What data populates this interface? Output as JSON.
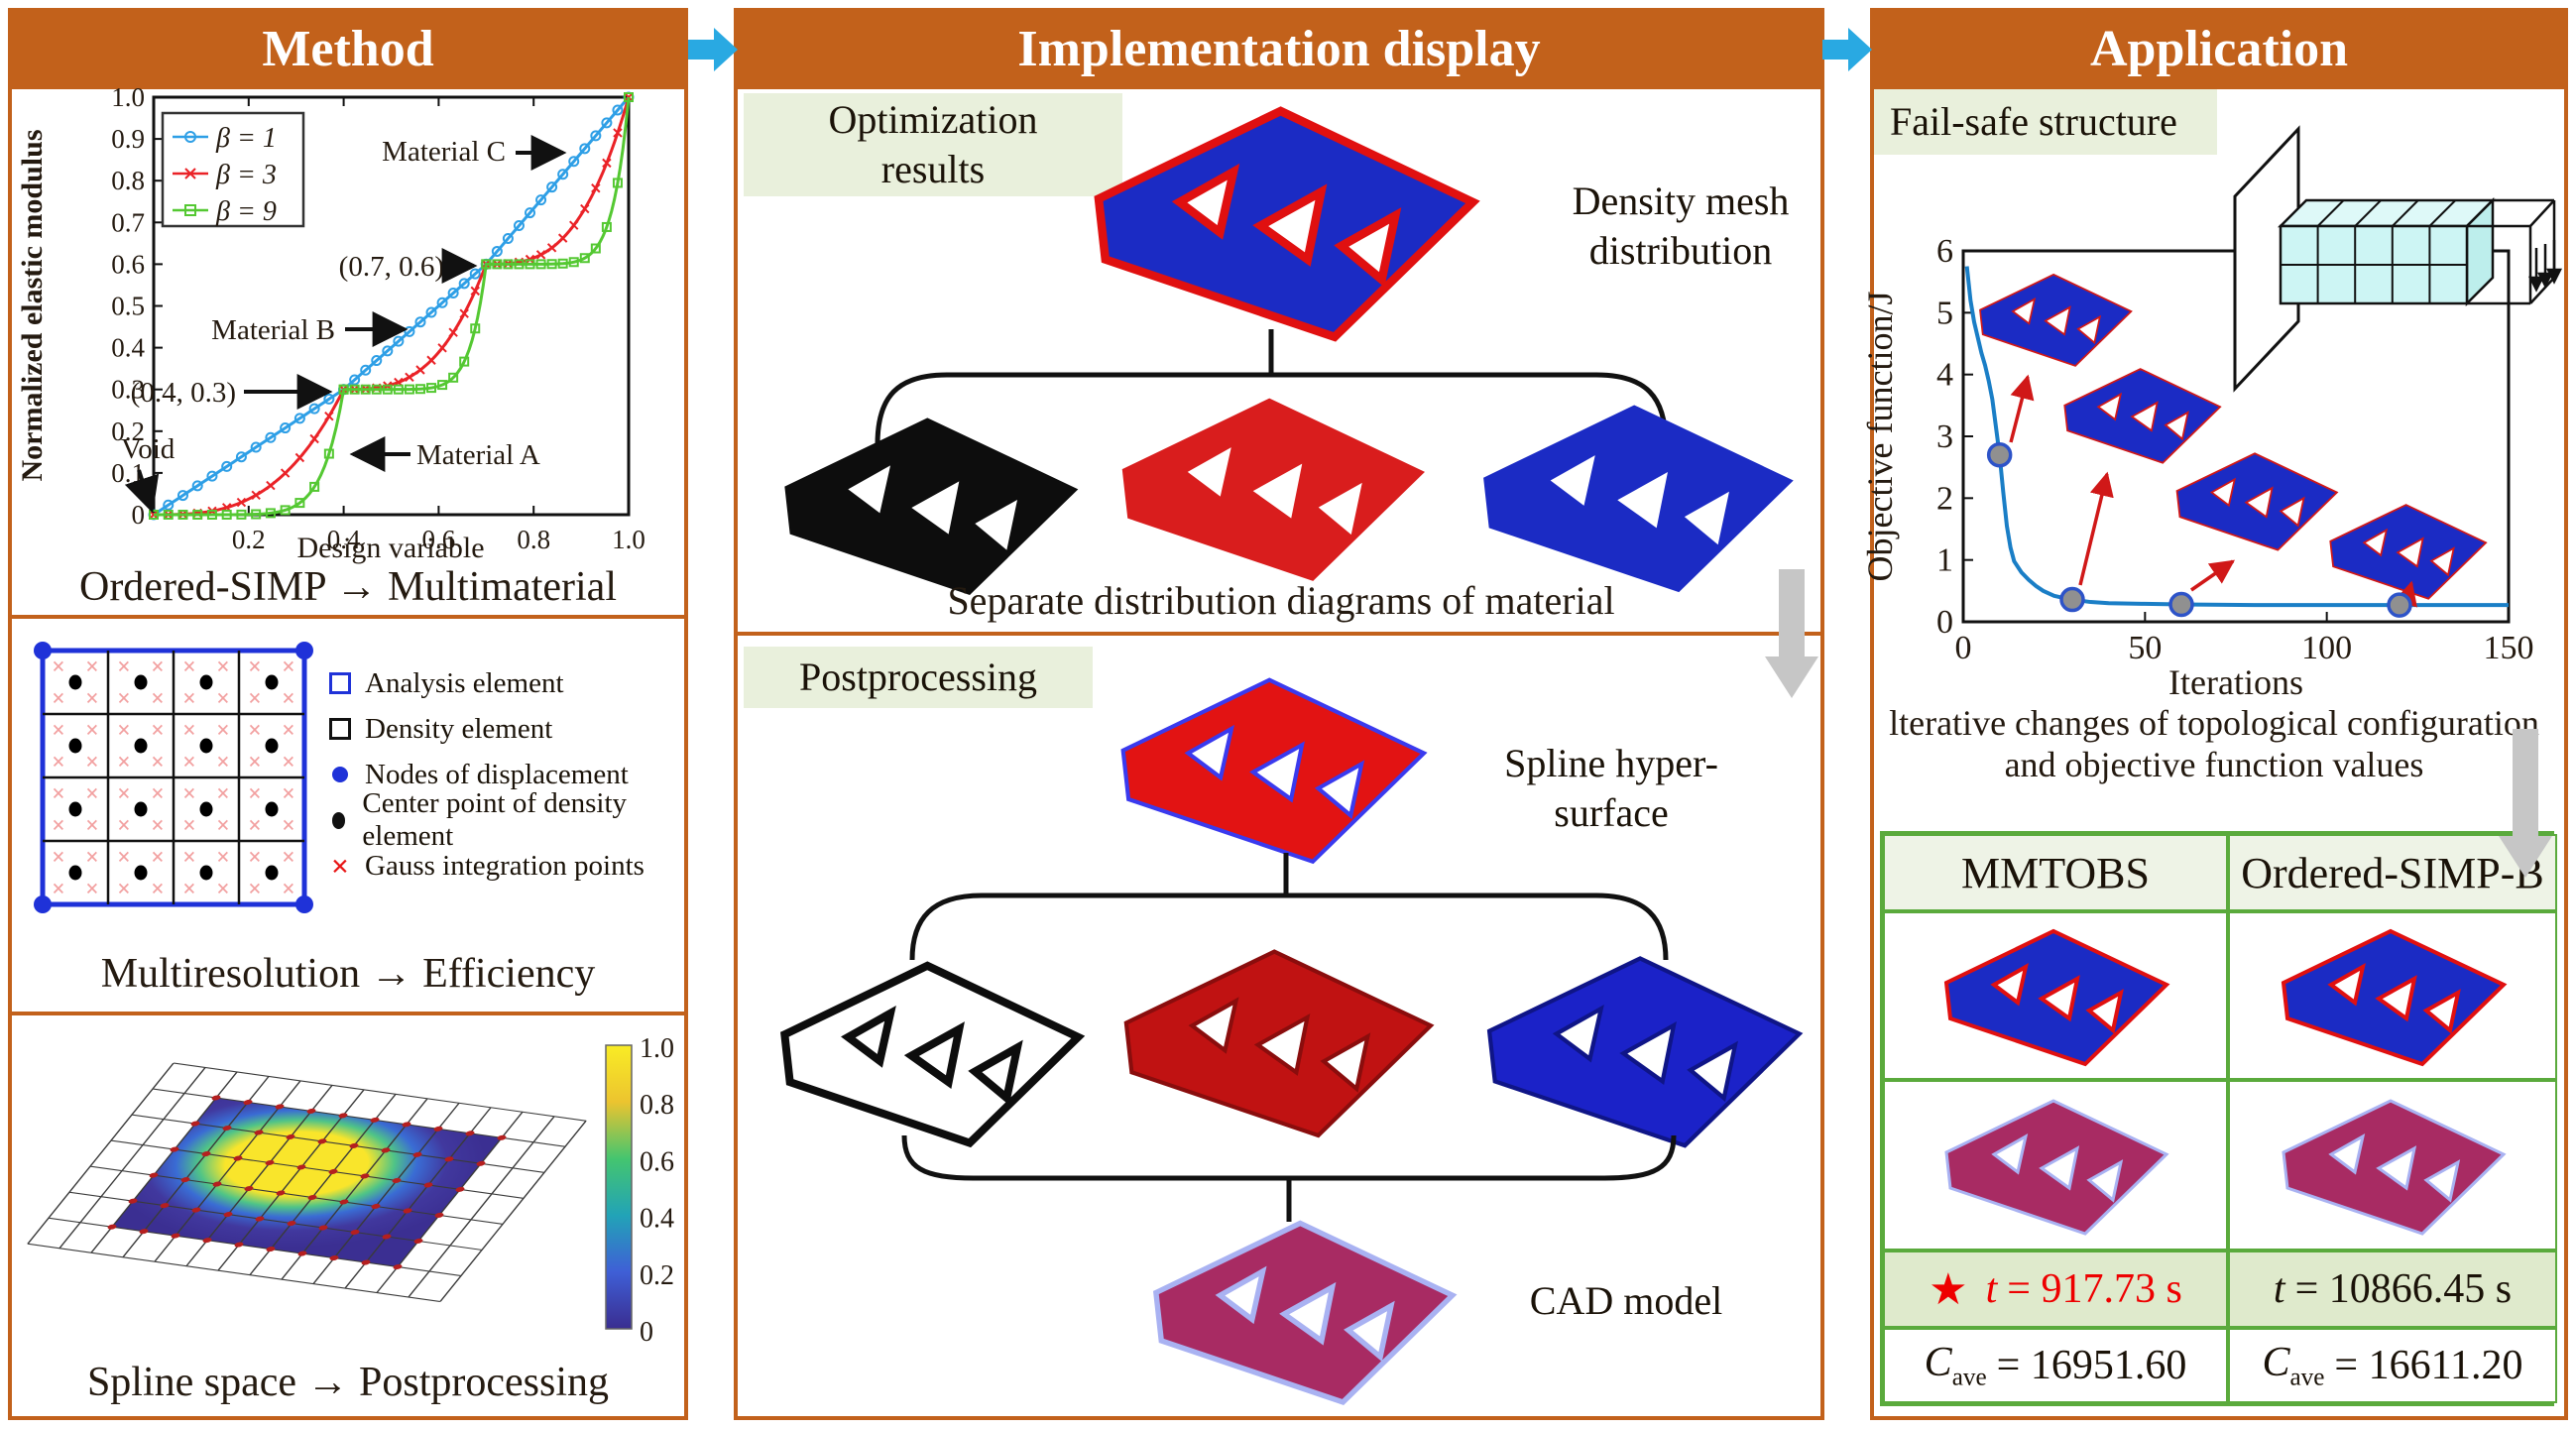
{
  "headers": {
    "method": "Method",
    "implementation": "Implementation display",
    "application": "Application"
  },
  "colors": {
    "panel_orange": "#c2611b",
    "flow_arrow_blue": "#29a9e2",
    "label_green_bg": "#e9f0dc",
    "table_border_green": "#5aaa3c",
    "highlight_red": "#ee0000",
    "gray_arrow": "#c6c6c6",
    "material_black": "#0d0d0d",
    "material_red": "#d91d1d",
    "material_blue": "#1b2bc4",
    "cad_magenta": "#a82b63"
  },
  "method": {
    "caption_simp": "Ordered-SIMP → Multimaterial",
    "caption_multires": "Multiresolution → Efficiency",
    "caption_spline": "Spline space → Postprocessing",
    "grid_legend": [
      {
        "label": "Analysis element"
      },
      {
        "label": "Density element"
      },
      {
        "label": "Nodes of displacement"
      },
      {
        "label": "Center point of density element"
      },
      {
        "label": "Gauss integration points"
      }
    ],
    "colorbar_ticks": [
      "1.0",
      "0.8",
      "0.6",
      "0.4",
      "0.2",
      "0"
    ]
  },
  "implementation": {
    "optimization_line1": "Optimization",
    "optimization_line2": "results",
    "density_line1": "Density mesh",
    "density_line2": "distribution",
    "separate_caption": "Separate distribution diagrams of material",
    "postprocessing_label": "Postprocessing",
    "spline_line1": "Spline hyper-",
    "spline_line2": "surface",
    "cad_label": "CAD model"
  },
  "application": {
    "failsafe_label": "Fail-safe structure",
    "iter_caption_line1": "lterative changes of topological configuration",
    "iter_caption_line2": "and objective function values",
    "table": {
      "col1": "MMTOBS",
      "col2": "Ordered-SIMP-B",
      "star": "★",
      "time_var": "t",
      "time_col1": "= 917.73 s",
      "time_col2": "= 10866.45 s",
      "cave_var": "C",
      "cave_sub": "ave",
      "cave_col1": "= 16951.60",
      "cave_col2": "= 16611.20"
    }
  },
  "chart_data": [
    {
      "id": "modulus",
      "type": "line",
      "title": "",
      "xlabel": "Design variable",
      "ylabel": "Normalized elastic modulus",
      "xlim": [
        0,
        1
      ],
      "ylim": [
        0,
        1
      ],
      "xticks": [
        0.2,
        0.4,
        0.6,
        0.8,
        1.0
      ],
      "yticks": [
        0,
        0.1,
        0.2,
        0.3,
        0.4,
        0.5,
        0.6,
        0.7,
        0.8,
        0.9,
        1.0
      ],
      "grid": false,
      "legend_position": "upper-left",
      "knots": [
        [
          0,
          0
        ],
        [
          0.4,
          0.3
        ],
        [
          0.7,
          0.6
        ],
        [
          1.0,
          1.0
        ]
      ],
      "series": [
        {
          "name": "β = 1",
          "beta": 1,
          "color": "#2e9fe6",
          "marker": "circle"
        },
        {
          "name": "β = 3",
          "beta": 3,
          "color": "#ea2227",
          "marker": "x"
        },
        {
          "name": "β = 9",
          "beta": 9,
          "color": "#54c832",
          "marker": "square"
        }
      ],
      "annotations": [
        {
          "text": "Material C"
        },
        {
          "text": "(0.7, 0.6)"
        },
        {
          "text": "Material B"
        },
        {
          "text": "(0.4, 0.3)"
        },
        {
          "text": "Void"
        },
        {
          "text": "Material A"
        }
      ]
    },
    {
      "id": "objective",
      "type": "line",
      "title": "",
      "xlabel": "Iterations",
      "ylabel": "Objective function/J",
      "xlim": [
        0,
        150
      ],
      "ylim": [
        0,
        6
      ],
      "xticks": [
        0,
        50,
        100,
        150
      ],
      "yticks": [
        0,
        1,
        2,
        3,
        4,
        5,
        6
      ],
      "grid": false,
      "series": [
        {
          "name": "objective function",
          "color": "#1a7ec6",
          "x": [
            1,
            2,
            3,
            4,
            5,
            6,
            7,
            8,
            10,
            11,
            12,
            13,
            14,
            16,
            18,
            20,
            22,
            25,
            28,
            30,
            35,
            40,
            50,
            60,
            80,
            100,
            120,
            150
          ],
          "y": [
            5.75,
            5.2,
            4.85,
            4.6,
            4.35,
            4.15,
            3.9,
            3.6,
            2.7,
            2.1,
            1.55,
            1.2,
            0.98,
            0.8,
            0.68,
            0.58,
            0.5,
            0.42,
            0.38,
            0.36,
            0.32,
            0.3,
            0.29,
            0.28,
            0.27,
            0.27,
            0.27,
            0.27
          ]
        }
      ],
      "markers": [
        [
          10,
          2.7
        ],
        [
          30,
          0.36
        ],
        [
          60,
          0.28
        ],
        [
          120,
          0.27
        ]
      ]
    }
  ]
}
